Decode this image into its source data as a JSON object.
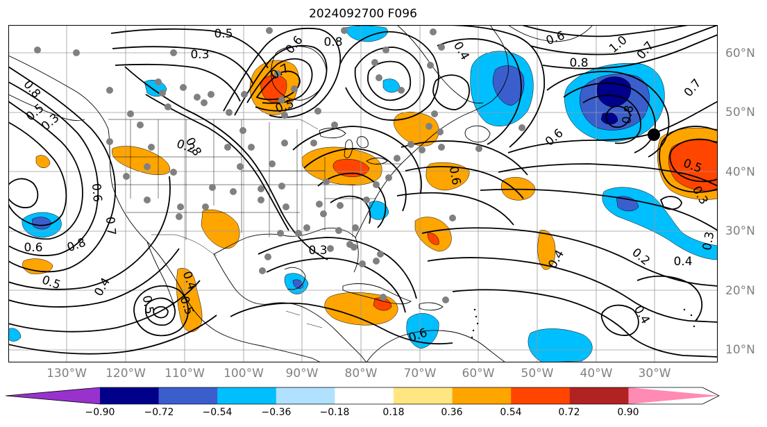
{
  "title": "2024092700 F096",
  "lon_labels": [
    "130°W",
    "120°W",
    "110°W",
    "100°W",
    "90°W",
    "80°W",
    "70°W",
    "60°W",
    "50°W",
    "40°W",
    "30°W"
  ],
  "lat_labels": [
    "60°N",
    "50°N",
    "40°N",
    "30°N",
    "20°N",
    "10°N"
  ],
  "colorbar": {
    "colors": [
      "#9932cc",
      "#00008b",
      "#3a5fcd",
      "#00bfff",
      "#b0e2ff",
      "#ffffff",
      "#ffe680",
      "#ffa500",
      "#ff4500",
      "#b22222",
      "#ff8ab4"
    ],
    "ticks": [
      "−0.90",
      "−0.72",
      "−0.54",
      "−0.36",
      "−0.18",
      "0.18",
      "0.36",
      "0.54",
      "0.72",
      "0.90"
    ]
  },
  "contour_labels": [
    {
      "text": "0.5"
    },
    {
      "text": "0.3"
    },
    {
      "text": "0.6"
    },
    {
      "text": "0.8"
    },
    {
      "text": "0.7"
    },
    {
      "text": "0.5"
    },
    {
      "text": "0.4"
    },
    {
      "text": "0.6"
    },
    {
      "text": "0.8"
    },
    {
      "text": "1.0"
    },
    {
      "text": "0.7"
    },
    {
      "text": "0.7"
    },
    {
      "text": "0.8"
    },
    {
      "text": "0.6"
    },
    {
      "text": "0.8"
    },
    {
      "text": "0.5"
    },
    {
      "text": "0.3"
    },
    {
      "text": "0.6"
    },
    {
      "text": "0.5"
    },
    {
      "text": "0.6"
    },
    {
      "text": "0.8"
    },
    {
      "text": "0.7"
    },
    {
      "text": "0.8"
    },
    {
      "text": "0.5"
    },
    {
      "text": "0.4"
    },
    {
      "text": "0.5"
    },
    {
      "text": "0.4"
    },
    {
      "text": "0.3"
    },
    {
      "text": "0.4"
    },
    {
      "text": "0.2"
    },
    {
      "text": "0.4"
    },
    {
      "text": "0.4"
    },
    {
      "text": "0.3"
    },
    {
      "text": "0.5"
    },
    {
      "text": "0.6"
    },
    {
      "text": "0.2"
    },
    {
      "text": "0.6"
    },
    {
      "text": "0.3"
    }
  ]
}
